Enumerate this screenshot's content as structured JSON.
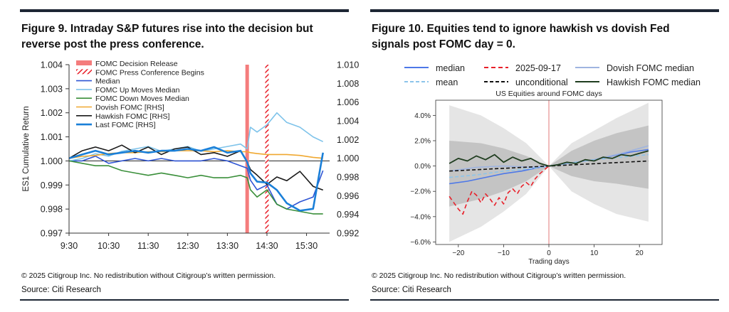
{
  "figures": [
    {
      "title_line1": "Figure 9. Intraday S&P futures rise into the decision but",
      "title_line2": "reverse post the press conference.",
      "copyright": "© 2025 Citigroup Inc. No redistribution without Citigroup’s written permission.",
      "source": "Source: Citi Research"
    },
    {
      "title_line1": "Figure 10. Equities tend to ignore hawkish vs dovish Fed",
      "title_line2": "signals post FOMC day = 0.",
      "copyright": "© 2025 Citigroup Inc. No redistribution without Citigroup’s written permission.",
      "source": "Source: Citi Research"
    }
  ],
  "chart_data": [
    {
      "type": "line",
      "title": "",
      "xlabel": "",
      "ylabel": "ES1 Cumulative Return",
      "x_ticks": [
        "9:30",
        "10:30",
        "11:30",
        "12:30",
        "13:30",
        "14:30",
        "15:30"
      ],
      "x_minutes": [
        0,
        60,
        120,
        180,
        240,
        300,
        360
      ],
      "xlim": [
        0,
        395
      ],
      "ylim": [
        0.997,
        1.004
      ],
      "y_ticks": [
        0.997,
        0.998,
        0.999,
        1.0,
        1.001,
        1.002,
        1.003,
        1.004
      ],
      "y_tick_labels": [
        "0.997",
        "0.998",
        "0.999",
        "1.000",
        "1.001",
        "1.002",
        "1.003",
        "1.004"
      ],
      "ylim_rhs": [
        0.992,
        1.01
      ],
      "y_ticks_rhs_labels": [
        "0.992",
        "0.994",
        "0.996",
        "0.998",
        "1.000",
        "1.002",
        "1.004",
        "1.006",
        "1.008",
        "1.010"
      ],
      "decision_minute": 270,
      "press_minute": 300,
      "legend_position": "top-left",
      "legend": [
        {
          "label": "FOMC Decision Release",
          "color": "#f47c7c",
          "style": "band"
        },
        {
          "label": "FOMC Press Conference Begins",
          "color": "#e8202a",
          "style": "hatch"
        },
        {
          "label": "Median",
          "color": "#2f55d4",
          "style": "line"
        },
        {
          "label": "FOMC Up Moves Median",
          "color": "#7ec3ea",
          "style": "line"
        },
        {
          "label": "FOMC Down Moves Median",
          "color": "#3a8f3a",
          "style": "line"
        },
        {
          "label": "Dovish FOMC [RHS]",
          "color": "#f0a830",
          "style": "line"
        },
        {
          "label": "Hawkish FOMC [RHS]",
          "color": "#1a1a1a",
          "style": "line"
        },
        {
          "label": "Last FOMC [RHS]",
          "color": "#1a7fd8",
          "style": "thick"
        }
      ],
      "series": [
        {
          "name": "Median",
          "axis": "left",
          "color": "#2f55d4",
          "x": [
            0,
            20,
            40,
            60,
            80,
            100,
            120,
            140,
            160,
            180,
            200,
            220,
            240,
            260,
            270,
            275,
            285,
            300,
            315,
            330,
            350,
            370,
            385
          ],
          "y": [
            1.0,
            1.0,
            1.0002,
            0.9999,
            1.0,
            1.0001,
            1.0,
            1.0001,
            1.0,
            1.0,
            1.0,
            1.0001,
            1.0,
            0.9998,
            0.9997,
            0.9992,
            0.9988,
            0.999,
            0.9982,
            0.998,
            0.9983,
            0.9985,
            0.9996
          ]
        },
        {
          "name": "FOMC Up Moves Median",
          "axis": "left",
          "color": "#7ec3ea",
          "x": [
            0,
            20,
            40,
            60,
            80,
            100,
            120,
            140,
            160,
            180,
            200,
            220,
            240,
            260,
            270,
            275,
            285,
            300,
            315,
            330,
            350,
            370,
            385
          ],
          "y": [
            1.0,
            1.0001,
            1.0003,
            1.0002,
            1.0004,
            1.0005,
            1.0006,
            1.0004,
            1.0005,
            1.0006,
            1.0004,
            1.0005,
            1.0006,
            1.0007,
            1.0005,
            1.0014,
            1.0012,
            1.0015,
            1.002,
            1.0016,
            1.0014,
            1.001,
            1.0008
          ]
        },
        {
          "name": "FOMC Down Moves Median",
          "axis": "left",
          "color": "#3a8f3a",
          "x": [
            0,
            20,
            40,
            60,
            80,
            100,
            120,
            140,
            160,
            180,
            200,
            220,
            240,
            260,
            270,
            275,
            285,
            300,
            315,
            330,
            350,
            370,
            385
          ],
          "y": [
            1.0,
            0.9999,
            0.9998,
            0.9998,
            0.9996,
            0.9995,
            0.9994,
            0.9995,
            0.9994,
            0.9993,
            0.9994,
            0.9993,
            0.9993,
            0.9994,
            0.9993,
            0.9988,
            0.9985,
            0.9988,
            0.9982,
            0.998,
            0.9979,
            0.9978,
            0.9978
          ]
        },
        {
          "name": "Dovish FOMC [RHS]",
          "axis": "right",
          "color": "#f0a830",
          "x": [
            0,
            20,
            40,
            60,
            80,
            100,
            120,
            140,
            160,
            180,
            200,
            220,
            240,
            260,
            270,
            275,
            285,
            300,
            315,
            330,
            350,
            370,
            385
          ],
          "y": [
            1.0,
            1.0002,
            1.0003,
            1.0005,
            1.0006,
            1.0006,
            1.0007,
            1.0007,
            1.0008,
            1.0008,
            1.0008,
            1.0007,
            1.0008,
            1.0007,
            1.0007,
            1.0006,
            1.0005,
            1.0004,
            1.0004,
            1.0004,
            1.0003,
            1.0001,
            1.0
          ]
        },
        {
          "name": "Hawkish FOMC [RHS]",
          "axis": "right",
          "color": "#1a1a1a",
          "x": [
            0,
            20,
            40,
            60,
            80,
            100,
            120,
            140,
            160,
            180,
            200,
            220,
            240,
            260,
            270,
            275,
            285,
            300,
            315,
            330,
            350,
            370,
            385
          ],
          "y": [
            1.0,
            1.0008,
            1.0012,
            1.0008,
            1.0014,
            1.0006,
            1.0012,
            1.0004,
            1.001,
            1.0012,
            1.0004,
            1.0006,
            1.0002,
            1.0008,
            0.9996,
            0.9988,
            0.9982,
            0.9972,
            0.998,
            0.9976,
            0.9986,
            0.997,
            0.9966
          ]
        },
        {
          "name": "Last FOMC [RHS]",
          "axis": "right",
          "color": "#1a7fd8",
          "x": [
            0,
            20,
            40,
            60,
            80,
            100,
            120,
            140,
            160,
            180,
            200,
            220,
            240,
            260,
            270,
            275,
            285,
            300,
            315,
            330,
            350,
            370,
            385
          ],
          "y": [
            1.0,
            1.0004,
            1.0008,
            1.0004,
            1.0006,
            1.0008,
            1.0006,
            1.0008,
            1.0008,
            1.001,
            1.0008,
            1.0012,
            1.0006,
            1.0008,
            0.9996,
            0.9984,
            0.9975,
            0.9974,
            0.9966,
            0.9952,
            0.9944,
            0.9946,
            1.0006
          ]
        }
      ]
    },
    {
      "type": "line",
      "title": "US Equities around FOMC days",
      "xlabel": "Trading days",
      "ylabel": "",
      "xlim": [
        -25,
        25
      ],
      "x_ticks": [
        -20,
        -10,
        0,
        10,
        20
      ],
      "x_tick_labels": [
        "−20",
        "−10",
        "0",
        "10",
        "20"
      ],
      "ylim": [
        -6.2,
        5.2
      ],
      "y_ticks": [
        -6,
        -4,
        -2,
        0,
        2,
        4
      ],
      "y_tick_labels": [
        "−6.0%",
        "−4.0%",
        "−2.0%",
        "0.0%",
        "2.0%",
        "4.0%"
      ],
      "vline_x": 0,
      "legend_position": "top",
      "legend": [
        {
          "label": "median",
          "color": "#4d78e8",
          "dash": ""
        },
        {
          "label": "2025-09-17",
          "color": "#e8202a",
          "dash": "6,4"
        },
        {
          "label": "Dovish FOMC median",
          "color": "#9fb4e0",
          "dash": ""
        },
        {
          "label": "mean",
          "color": "#8cc4ea",
          "dash": "5,3"
        },
        {
          "label": "unconditional",
          "color": "#111111",
          "dash": "5,3"
        },
        {
          "label": "Hawkish FOMC median",
          "color": "#1f3d1f",
          "dash": ""
        }
      ],
      "bands": [
        {
          "name": "outer",
          "x": [
            -22,
            -15,
            -10,
            -5,
            0,
            5,
            10,
            15,
            22
          ],
          "lower": [
            -6.0,
            -4.8,
            -3.6,
            -2.2,
            0.0,
            -2.0,
            -3.0,
            -3.8,
            -4.4
          ],
          "upper": [
            4.8,
            4.0,
            3.0,
            1.8,
            0.0,
            1.8,
            2.8,
            3.8,
            5.0
          ]
        },
        {
          "name": "inner",
          "x": [
            -22,
            -15,
            -10,
            -5,
            0,
            5,
            10,
            15,
            22
          ],
          "lower": [
            -3.2,
            -2.6,
            -2.0,
            -1.2,
            0.0,
            -0.8,
            -1.2,
            -1.4,
            -1.8
          ],
          "upper": [
            2.0,
            1.8,
            1.4,
            0.8,
            0.0,
            1.2,
            2.0,
            2.6,
            3.2
          ]
        }
      ],
      "series": [
        {
          "name": "median",
          "color": "#4d78e8",
          "x": [
            -22,
            -18,
            -14,
            -10,
            -6,
            -2,
            0,
            2,
            6,
            10,
            14,
            18,
            22
          ],
          "y": [
            -1.4,
            -1.2,
            -0.9,
            -0.6,
            -0.4,
            -0.1,
            0.0,
            0.1,
            0.3,
            0.5,
            0.8,
            1.1,
            1.3
          ]
        },
        {
          "name": "2025-09-17",
          "color": "#e8202a",
          "x": [
            -22,
            -20,
            -19,
            -18,
            -17,
            -16,
            -15,
            -14,
            -13,
            -12,
            -11,
            -10,
            -9,
            -8,
            -7,
            -6,
            -5,
            -4,
            -3,
            -2,
            -1,
            0
          ],
          "y": [
            -2.4,
            -3.4,
            -3.8,
            -2.8,
            -2.0,
            -2.3,
            -2.9,
            -2.2,
            -2.6,
            -3.1,
            -2.5,
            -3.0,
            -2.1,
            -1.8,
            -2.2,
            -1.6,
            -1.3,
            -1.6,
            -1.0,
            -0.6,
            -0.3,
            0.0
          ]
        },
        {
          "name": "Dovish FOMC median",
          "color": "#9fb4e0",
          "x": [
            -22,
            -16,
            -10,
            -4,
            0,
            4,
            10,
            16,
            22
          ],
          "y": [
            -0.4,
            -0.1,
            0.0,
            -0.1,
            0.0,
            0.2,
            0.5,
            1.0,
            1.6
          ]
        },
        {
          "name": "mean",
          "color": "#8cc4ea",
          "x": [
            -22,
            -16,
            -10,
            -4,
            0,
            4,
            10,
            16,
            22
          ],
          "y": [
            -0.9,
            -0.7,
            -0.4,
            -0.2,
            0.0,
            0.2,
            0.5,
            0.7,
            0.9
          ]
        },
        {
          "name": "unconditional",
          "color": "#111111",
          "x": [
            -22,
            22
          ],
          "y": [
            -0.4,
            0.4
          ]
        },
        {
          "name": "Hawkish FOMC median",
          "color": "#1f3d1f",
          "x": [
            -22,
            -20,
            -18,
            -16,
            -14,
            -12,
            -10,
            -8,
            -6,
            -4,
            -2,
            0,
            2,
            4,
            6,
            8,
            10,
            12,
            14,
            16,
            18,
            20,
            22
          ],
          "y": [
            0.2,
            0.6,
            0.4,
            0.8,
            0.5,
            0.9,
            0.3,
            0.7,
            0.4,
            0.6,
            0.2,
            0.0,
            0.1,
            0.3,
            0.2,
            0.5,
            0.4,
            0.7,
            0.6,
            0.9,
            0.8,
            1.0,
            1.2
          ]
        }
      ]
    }
  ]
}
